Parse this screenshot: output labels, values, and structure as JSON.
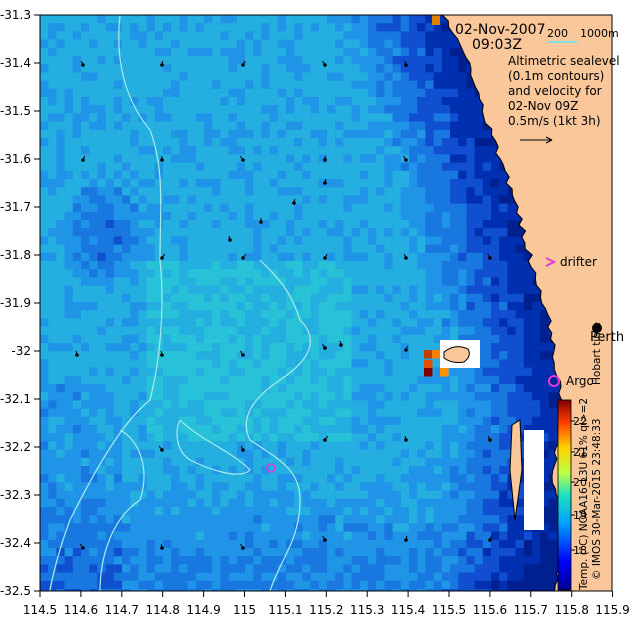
{
  "map": {
    "date": "02-Nov-2007",
    "time": "09:03Z",
    "depth_labels": {
      "a": "200",
      "b": "1000m"
    },
    "description_lines": [
      "Altimetric sealevel",
      "(0.1m contours)",
      "and velocity for",
      "02-Nov 09Z",
      "0.5m/s (1kt 3h)"
    ],
    "drifter_label": "drifter",
    "argo_label": "Argo",
    "city_label": "Perth",
    "hobart_label": "Hobart time",
    "credit": "© IMOS 30-Mar-2015 23:48:33",
    "colorbar_label": "Temp. (°C) NOAA16_L3U 61% ql>=2",
    "colorbar_ticks": [
      "22",
      "21",
      "20",
      "19",
      "18"
    ],
    "lon_ticks": [
      "114.5",
      "114.6",
      "114.7",
      "114.8",
      "114.9",
      "115",
      "115.1",
      "115.2",
      "115.3",
      "115.4",
      "115.5",
      "115.6",
      "115.7",
      "115.8",
      "115.9"
    ],
    "lat_ticks": [
      "-31.3",
      "-31.4",
      "-31.5",
      "-31.6",
      "-31.7",
      "-31.8",
      "-31.9",
      "-32",
      "-32.1",
      "-32.2",
      "-32.3",
      "-32.4",
      "-32.5"
    ],
    "colors": {
      "land": "#f9c79a",
      "contour": "#a8ecec",
      "marker": "#e13ad8",
      "sst_cold": "#000080",
      "sst_warm": "#800000"
    }
  }
}
